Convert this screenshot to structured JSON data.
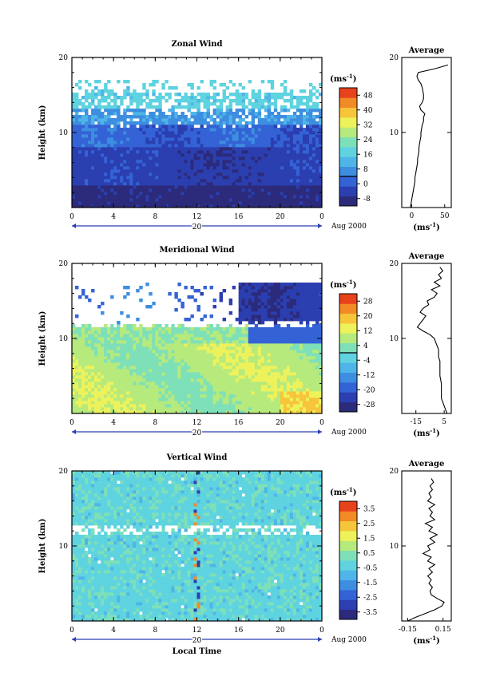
{
  "chart_data": [
    {
      "type": "heatmap",
      "title": "Zonal Wind",
      "ylabel": "Height (km)",
      "xlabel": "",
      "x_ticks": [
        "0",
        "4",
        "8",
        "12",
        "16",
        "20",
        "0"
      ],
      "y_ticks": [
        "10",
        "20"
      ],
      "xlim": [
        0,
        24
      ],
      "ylim": [
        0,
        20
      ],
      "day_label": "20",
      "date_label": "Aug 2000",
      "colorbar": {
        "unit_label": "(ms",
        "unit_sup": "-1",
        "unit_close": ")",
        "tick_labels": [
          "48",
          "40",
          "32",
          "24",
          "16",
          "8",
          "0",
          "-8"
        ],
        "range": [
          -12,
          52
        ]
      },
      "profile": {
        "title": "Average",
        "xticks": [
          "0",
          "50"
        ],
        "xlim": [
          -15,
          60
        ],
        "xlabel_unit": "(ms",
        "xlabel_sup": "-1",
        "xlabel_close": ")",
        "x": [
          -2,
          -1,
          0,
          1,
          2,
          3,
          4,
          5,
          5,
          6,
          7,
          8,
          9,
          9,
          10,
          11,
          11,
          12,
          13,
          14,
          14,
          15,
          16,
          18,
          18,
          20,
          14,
          12,
          16,
          18,
          18,
          17,
          16,
          14,
          10,
          8,
          10,
          35,
          55
        ],
        "y": [
          0,
          0.5,
          1,
          1.5,
          2,
          2.5,
          3,
          3.5,
          4,
          4.5,
          5,
          5.5,
          6,
          6.5,
          7,
          7.5,
          8,
          8.5,
          9,
          9.5,
          10,
          10.5,
          11,
          11.5,
          12,
          12.5,
          13,
          13.5,
          14,
          14.5,
          15,
          15.5,
          16,
          16.5,
          17,
          17.5,
          18,
          18.5,
          19
        ]
      }
    },
    {
      "type": "heatmap",
      "title": "Meridional Wind",
      "ylabel": "Height (km)",
      "xlabel": "",
      "x_ticks": [
        "0",
        "4",
        "8",
        "12",
        "16",
        "20",
        "0"
      ],
      "y_ticks": [
        "10",
        "20"
      ],
      "xlim": [
        0,
        24
      ],
      "ylim": [
        0,
        20
      ],
      "day_label": "20",
      "date_label": "Aug 2000",
      "colorbar": {
        "unit_label": "(ms",
        "unit_sup": "-1",
        "unit_close": ")",
        "tick_labels": [
          "28",
          "20",
          "12",
          "4",
          "-4",
          "-12",
          "-20",
          "-28"
        ],
        "range": [
          -32,
          32
        ]
      },
      "profile": {
        "title": "Average",
        "xticks": [
          "-15",
          "5"
        ],
        "xlim": [
          -25,
          10
        ],
        "xlabel_unit": "(ms",
        "xlabel_sup": "-1",
        "xlabel_close": ")",
        "x": [
          7,
          6,
          5,
          4,
          3,
          3,
          3,
          2,
          2,
          2,
          1,
          1,
          1,
          0,
          -1,
          -2,
          -5,
          -10,
          -14,
          -12,
          -10,
          -8,
          -12,
          -10,
          -6,
          -7,
          -2,
          0,
          -4,
          2,
          -2,
          3,
          1,
          4,
          2
        ],
        "y": [
          0,
          0.5,
          1,
          1.5,
          2,
          3,
          4,
          5,
          6,
          7,
          7.5,
          8,
          8.5,
          9,
          9.5,
          10,
          10.5,
          11,
          11.5,
          12,
          12.5,
          13,
          13.5,
          14,
          14.5,
          15,
          15.5,
          16,
          16.5,
          17,
          17.5,
          18,
          18.5,
          19,
          19.5
        ]
      }
    },
    {
      "type": "heatmap",
      "title": "Vertical Wind",
      "ylabel": "Height (km)",
      "xlabel": "Local Time",
      "x_ticks": [
        "0",
        "4",
        "8",
        "12",
        "16",
        "20",
        "0"
      ],
      "y_ticks": [
        "10",
        "20"
      ],
      "xlim": [
        0,
        24
      ],
      "ylim": [
        0,
        20
      ],
      "day_label": "20",
      "date_label": "Aug 2000",
      "colorbar": {
        "unit_label": "(ms",
        "unit_sup": "-1",
        "unit_close": ")",
        "tick_labels": [
          "3.5",
          "2.5",
          "1.5",
          "0.5",
          "-0.5",
          "-1.5",
          "-2.5",
          "-3.5"
        ],
        "range": [
          -4,
          4
        ]
      },
      "profile": {
        "title": "Average",
        "xticks": [
          "-0.15",
          "0.15"
        ],
        "xlim": [
          -0.2,
          0.22
        ],
        "xlabel_unit": "(ms",
        "xlabel_sup": "-1",
        "xlabel_close": ")",
        "x": [
          -0.15,
          -0.08,
          0,
          0.08,
          0.14,
          0.16,
          0.1,
          0.05,
          0.04,
          0.06,
          0.03,
          0.05,
          0.02,
          0.06,
          0.03,
          0.08,
          0.02,
          0.05,
          -0.02,
          0.04,
          0.02,
          0.08,
          0.04,
          0.1,
          0.03,
          0.06,
          0.0,
          0.08,
          0.04,
          0.06,
          0.03,
          0.08,
          0.02,
          0.05,
          0.03,
          0.06,
          0.04,
          0.07,
          0.05
        ],
        "y": [
          0,
          0.5,
          1,
          1.5,
          2,
          2.5,
          3,
          3.5,
          4,
          4.5,
          5,
          5.5,
          6,
          6.5,
          7,
          7.5,
          8,
          8.5,
          9,
          9.5,
          10,
          10.5,
          11,
          11.5,
          12,
          12.5,
          13,
          13.5,
          14,
          14.5,
          15,
          15.5,
          16,
          16.5,
          17,
          17.5,
          18,
          18.5,
          19
        ]
      }
    }
  ]
}
